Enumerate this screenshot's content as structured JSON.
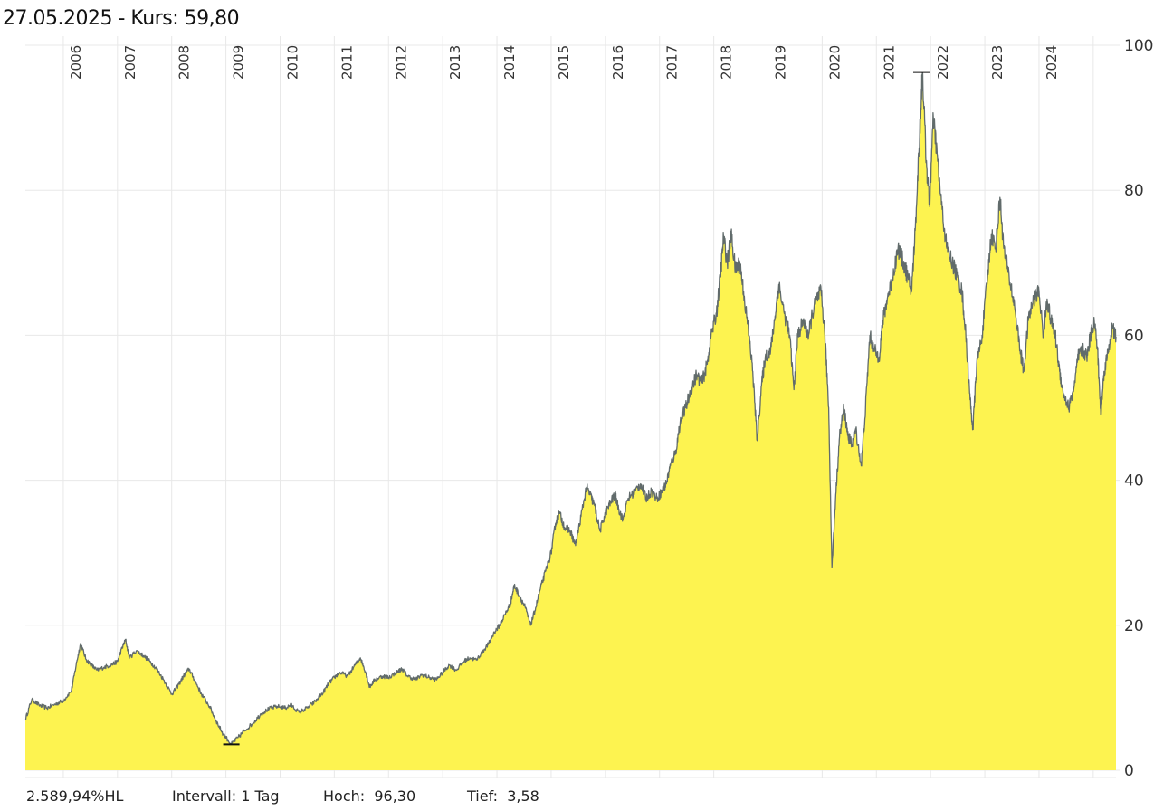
{
  "header": {
    "date": "27.05.2025",
    "separator": " - ",
    "price_label": "Kurs:",
    "price_value": "59,80"
  },
  "footer": {
    "hl": "2.589,94%HL",
    "interval_label": "Intervall:",
    "interval_value": "1 Tag",
    "high_label": "Hoch:",
    "high_value": "96,30",
    "low_label": "Tief:",
    "low_value": "3,58"
  },
  "colors": {
    "fill": "#fdf350",
    "line": "#616b6b",
    "grid": "#e8e8e8"
  },
  "chart_data": {
    "type": "area",
    "title": "",
    "xlabel": "",
    "ylabel": "",
    "ylim": [
      0,
      100
    ],
    "xlim": [
      2005.3,
      2025.42
    ],
    "yticks": [
      0,
      20,
      40,
      60,
      80,
      100
    ],
    "xtick_labels": [
      "2006",
      "2007",
      "2008",
      "2009",
      "2010",
      "2011",
      "2012",
      "2013",
      "2014",
      "2015",
      "2016",
      "2017",
      "2018",
      "2019",
      "2020",
      "2021",
      "2022",
      "2023",
      "2024"
    ],
    "grid": true,
    "high_marker": {
      "x": 2021.83,
      "y": 96.3
    },
    "low_marker": {
      "x": 2009.1,
      "y": 3.58
    },
    "series": [
      {
        "points": [
          [
            2005.3,
            7.0
          ],
          [
            2005.42,
            9.8
          ],
          [
            2005.55,
            9.0
          ],
          [
            2005.7,
            8.6
          ],
          [
            2005.85,
            9.1
          ],
          [
            2006.0,
            9.6
          ],
          [
            2006.15,
            11.0
          ],
          [
            2006.25,
            15.0
          ],
          [
            2006.32,
            17.5
          ],
          [
            2006.42,
            15.3
          ],
          [
            2006.52,
            14.5
          ],
          [
            2006.62,
            13.8
          ],
          [
            2006.75,
            14.2
          ],
          [
            2006.9,
            14.6
          ],
          [
            2007.0,
            15.0
          ],
          [
            2007.08,
            16.8
          ],
          [
            2007.15,
            18.0
          ],
          [
            2007.22,
            15.5
          ],
          [
            2007.35,
            16.5
          ],
          [
            2007.48,
            15.8
          ],
          [
            2007.6,
            15.0
          ],
          [
            2007.72,
            14.0
          ],
          [
            2007.85,
            12.5
          ],
          [
            2008.0,
            10.5
          ],
          [
            2008.1,
            11.5
          ],
          [
            2008.22,
            13.0
          ],
          [
            2008.32,
            14.0
          ],
          [
            2008.42,
            12.5
          ],
          [
            2008.55,
            10.5
          ],
          [
            2008.7,
            8.8
          ],
          [
            2008.82,
            6.8
          ],
          [
            2008.95,
            5.0
          ],
          [
            2009.1,
            3.6
          ],
          [
            2009.22,
            4.5
          ],
          [
            2009.35,
            5.5
          ],
          [
            2009.5,
            6.5
          ],
          [
            2009.65,
            7.8
          ],
          [
            2009.8,
            8.5
          ],
          [
            2009.95,
            8.8
          ],
          [
            2010.1,
            8.6
          ],
          [
            2010.2,
            9.0
          ],
          [
            2010.35,
            8.0
          ],
          [
            2010.5,
            8.6
          ],
          [
            2010.65,
            9.5
          ],
          [
            2010.8,
            10.8
          ],
          [
            2010.9,
            12.0
          ],
          [
            2011.0,
            12.8
          ],
          [
            2011.1,
            13.5
          ],
          [
            2011.25,
            13.0
          ],
          [
            2011.38,
            14.5
          ],
          [
            2011.48,
            15.5
          ],
          [
            2011.58,
            13.5
          ],
          [
            2011.65,
            11.5
          ],
          [
            2011.75,
            12.5
          ],
          [
            2011.9,
            13.0
          ],
          [
            2012.0,
            12.8
          ],
          [
            2012.15,
            13.5
          ],
          [
            2012.25,
            14.0
          ],
          [
            2012.35,
            13.0
          ],
          [
            2012.5,
            12.5
          ],
          [
            2012.62,
            13.2
          ],
          [
            2012.75,
            12.8
          ],
          [
            2012.88,
            12.5
          ],
          [
            2013.0,
            13.5
          ],
          [
            2013.12,
            14.5
          ],
          [
            2013.25,
            13.8
          ],
          [
            2013.38,
            15.0
          ],
          [
            2013.5,
            15.5
          ],
          [
            2013.62,
            15.2
          ],
          [
            2013.75,
            16.5
          ],
          [
            2013.85,
            17.5
          ],
          [
            2013.95,
            19.0
          ],
          [
            2014.05,
            20.0
          ],
          [
            2014.15,
            21.5
          ],
          [
            2014.25,
            23.0
          ],
          [
            2014.32,
            25.5
          ],
          [
            2014.42,
            24.0
          ],
          [
            2014.52,
            22.5
          ],
          [
            2014.62,
            20.0
          ],
          [
            2014.7,
            22.0
          ],
          [
            2014.8,
            25.0
          ],
          [
            2014.9,
            27.5
          ],
          [
            2015.0,
            30.0
          ],
          [
            2015.08,
            34.0
          ],
          [
            2015.15,
            35.5
          ],
          [
            2015.25,
            33.5
          ],
          [
            2015.35,
            33.0
          ],
          [
            2015.45,
            31.0
          ],
          [
            2015.55,
            35.0
          ],
          [
            2015.65,
            39.0
          ],
          [
            2015.72,
            38.0
          ],
          [
            2015.8,
            36.5
          ],
          [
            2015.9,
            33.0
          ],
          [
            2016.0,
            35.5
          ],
          [
            2016.1,
            37.0
          ],
          [
            2016.18,
            38.0
          ],
          [
            2016.25,
            36.0
          ],
          [
            2016.32,
            34.5
          ],
          [
            2016.42,
            37.5
          ],
          [
            2016.55,
            38.5
          ],
          [
            2016.65,
            39.5
          ],
          [
            2016.75,
            37.5
          ],
          [
            2016.85,
            38.5
          ],
          [
            2016.95,
            37.5
          ],
          [
            2017.05,
            38.5
          ],
          [
            2017.12,
            39.5
          ],
          [
            2017.2,
            42.0
          ],
          [
            2017.3,
            44.0
          ],
          [
            2017.38,
            48.0
          ],
          [
            2017.48,
            50.0
          ],
          [
            2017.58,
            52.5
          ],
          [
            2017.68,
            54.5
          ],
          [
            2017.78,
            53.5
          ],
          [
            2017.88,
            56.0
          ],
          [
            2017.95,
            60.0
          ],
          [
            2018.05,
            63.0
          ],
          [
            2018.12,
            68.0
          ],
          [
            2018.18,
            73.5
          ],
          [
            2018.25,
            70.0
          ],
          [
            2018.32,
            74.0
          ],
          [
            2018.4,
            69.0
          ],
          [
            2018.48,
            70.0
          ],
          [
            2018.55,
            66.0
          ],
          [
            2018.65,
            60.0
          ],
          [
            2018.72,
            55.0
          ],
          [
            2018.8,
            45.5
          ],
          [
            2018.88,
            53.0
          ],
          [
            2018.95,
            57.0
          ],
          [
            2019.05,
            58.0
          ],
          [
            2019.12,
            62.0
          ],
          [
            2019.2,
            67.0
          ],
          [
            2019.3,
            63.0
          ],
          [
            2019.4,
            60.0
          ],
          [
            2019.48,
            52.5
          ],
          [
            2019.55,
            60.0
          ],
          [
            2019.65,
            62.0
          ],
          [
            2019.75,
            60.0
          ],
          [
            2019.82,
            63.0
          ],
          [
            2019.9,
            65.0
          ],
          [
            2019.98,
            66.0
          ],
          [
            2020.05,
            60.0
          ],
          [
            2020.12,
            50.0
          ],
          [
            2020.18,
            28.0
          ],
          [
            2020.25,
            38.0
          ],
          [
            2020.32,
            46.0
          ],
          [
            2020.4,
            50.0
          ],
          [
            2020.48,
            46.0
          ],
          [
            2020.55,
            45.0
          ],
          [
            2020.62,
            47.0
          ],
          [
            2020.72,
            42.0
          ],
          [
            2020.8,
            50.0
          ],
          [
            2020.88,
            60.0
          ],
          [
            2020.95,
            58.0
          ],
          [
            2021.05,
            57.0
          ],
          [
            2021.12,
            62.0
          ],
          [
            2021.2,
            65.0
          ],
          [
            2021.3,
            68.0
          ],
          [
            2021.4,
            72.0
          ],
          [
            2021.5,
            70.0
          ],
          [
            2021.58,
            68.0
          ],
          [
            2021.65,
            66.0
          ],
          [
            2021.72,
            75.0
          ],
          [
            2021.8,
            88.0
          ],
          [
            2021.85,
            96.3
          ],
          [
            2021.92,
            84.0
          ],
          [
            2021.98,
            78.0
          ],
          [
            2022.05,
            90.0
          ],
          [
            2022.12,
            85.0
          ],
          [
            2022.2,
            78.0
          ],
          [
            2022.3,
            72.0
          ],
          [
            2022.4,
            70.0
          ],
          [
            2022.5,
            68.0
          ],
          [
            2022.58,
            66.0
          ],
          [
            2022.65,
            60.0
          ],
          [
            2022.72,
            52.0
          ],
          [
            2022.78,
            47.0
          ],
          [
            2022.85,
            56.0
          ],
          [
            2022.95,
            60.0
          ],
          [
            2023.05,
            68.0
          ],
          [
            2023.12,
            74.0
          ],
          [
            2023.2,
            72.0
          ],
          [
            2023.28,
            79.0
          ],
          [
            2023.35,
            72.0
          ],
          [
            2023.45,
            68.0
          ],
          [
            2023.55,
            64.0
          ],
          [
            2023.65,
            58.0
          ],
          [
            2023.72,
            55.0
          ],
          [
            2023.8,
            62.0
          ],
          [
            2023.9,
            65.0
          ],
          [
            2024.0,
            66.0
          ],
          [
            2024.08,
            60.0
          ],
          [
            2024.15,
            65.0
          ],
          [
            2024.22,
            62.0
          ],
          [
            2024.3,
            60.0
          ],
          [
            2024.38,
            55.0
          ],
          [
            2024.45,
            52.0
          ],
          [
            2024.55,
            50.0
          ],
          [
            2024.65,
            53.0
          ],
          [
            2024.72,
            57.0
          ],
          [
            2024.8,
            58.0
          ],
          [
            2024.88,
            57.0
          ],
          [
            2024.95,
            60.0
          ],
          [
            2025.02,
            62.0
          ],
          [
            2025.08,
            58.0
          ],
          [
            2025.14,
            49.0
          ],
          [
            2025.2,
            55.0
          ],
          [
            2025.28,
            58.0
          ],
          [
            2025.35,
            61.0
          ],
          [
            2025.42,
            59.8
          ]
        ]
      }
    ]
  }
}
